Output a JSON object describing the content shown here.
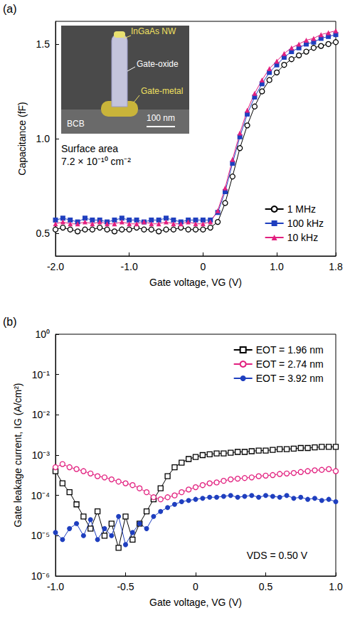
{
  "chart_data": [
    {
      "type": "line",
      "panel_label": "(a)",
      "xlabel": "Gate voltage, VG (V)",
      "ylabel": "Capacitance (fF)",
      "annotations": [
        "Surface area",
        "7.2 × 10⁻¹⁰ cm⁻²"
      ],
      "inset": {
        "labels": [
          "InGaAs NW",
          "Gate-oxide",
          "Gate-metal",
          "BCB"
        ],
        "scale_bar": "100 nm"
      },
      "xlim": [
        -2.0,
        1.8
      ],
      "xticks": [
        {
          "value": -2.0,
          "label": "-2.0"
        },
        {
          "value": -1.0,
          "label": "-1.0"
        },
        0,
        {
          "value": 1.0,
          "label": "1.0"
        },
        1.8
      ],
      "ylim": [
        0.38,
        1.62
      ],
      "yticks": [
        0.5,
        {
          "value": 1.0,
          "label": "1.0"
        },
        1.5
      ],
      "grid": false,
      "legend": "lower right",
      "x": [
        -2.0,
        -1.9,
        -1.8,
        -1.7,
        -1.6,
        -1.5,
        -1.4,
        -1.3,
        -1.2,
        -1.1,
        -1.0,
        -0.9,
        -0.8,
        -0.7,
        -0.6,
        -0.5,
        -0.4,
        -0.3,
        -0.2,
        -0.1,
        0.0,
        0.1,
        0.2,
        0.3,
        0.4,
        0.5,
        0.6,
        0.7,
        0.8,
        0.9,
        1.0,
        1.1,
        1.2,
        1.3,
        1.4,
        1.5,
        1.6,
        1.7,
        1.8
      ],
      "series": [
        {
          "name": "1 MHz",
          "color": "#000000",
          "marker": "open_circle",
          "line_style": "solid",
          "values": [
            0.52,
            0.53,
            0.52,
            0.51,
            0.52,
            0.52,
            0.53,
            0.52,
            0.51,
            0.52,
            0.52,
            0.53,
            0.52,
            0.52,
            0.51,
            0.52,
            0.52,
            0.53,
            0.52,
            0.52,
            0.52,
            0.53,
            0.56,
            0.66,
            0.8,
            0.95,
            1.07,
            1.17,
            1.25,
            1.31,
            1.35,
            1.39,
            1.42,
            1.44,
            1.46,
            1.48,
            1.49,
            1.5,
            1.51
          ]
        },
        {
          "name": "100 kHz",
          "color": "#1f3fbf",
          "marker": "filled_square",
          "line_style": "solid",
          "values": [
            0.57,
            0.58,
            0.57,
            0.56,
            0.58,
            0.57,
            0.57,
            0.56,
            0.57,
            0.58,
            0.57,
            0.57,
            0.56,
            0.57,
            0.57,
            0.58,
            0.57,
            0.56,
            0.57,
            0.57,
            0.57,
            0.57,
            0.61,
            0.72,
            0.87,
            1.01,
            1.13,
            1.22,
            1.29,
            1.35,
            1.39,
            1.43,
            1.46,
            1.48,
            1.5,
            1.51,
            1.53,
            1.54,
            1.55
          ]
        },
        {
          "name": "10 kHz",
          "color": "#e2207f",
          "marker": "filled_triangle",
          "line_style": "solid",
          "values": [
            0.55,
            0.56,
            0.55,
            0.55,
            0.56,
            0.55,
            0.56,
            0.55,
            0.55,
            0.56,
            0.55,
            0.55,
            0.56,
            0.55,
            0.55,
            0.56,
            0.55,
            0.55,
            0.56,
            0.55,
            0.55,
            0.56,
            0.62,
            0.74,
            0.89,
            1.03,
            1.15,
            1.24,
            1.31,
            1.37,
            1.41,
            1.45,
            1.48,
            1.5,
            1.52,
            1.53,
            1.55,
            1.56,
            1.57
          ]
        }
      ]
    },
    {
      "type": "line",
      "panel_label": "(b)",
      "xlabel": "Gate voltage, VG (V)",
      "ylabel": "Gate leakage current, IG (A/cm²)",
      "annotations": [
        "VDS = 0.50 V"
      ],
      "log": "y",
      "xlim": [
        -1.0,
        1.0
      ],
      "xticks": [
        {
          "value": -1.0,
          "label": "-1.0"
        },
        -0.5,
        0,
        0.5,
        {
          "value": 1.0,
          "label": "1.0"
        }
      ],
      "ylim": [
        1e-06,
        1
      ],
      "yticks": [
        {
          "value": 1e-06,
          "label": "10⁻⁶"
        },
        {
          "value": 1e-05,
          "label": "10⁻⁵"
        },
        {
          "value": 0.0001,
          "label": "10⁻⁴"
        },
        {
          "value": 0.001,
          "label": "10⁻³"
        },
        {
          "value": 0.01,
          "label": "10⁻²"
        },
        {
          "value": 0.1,
          "label": "10⁻¹"
        },
        {
          "value": 1,
          "label": "10⁰"
        }
      ],
      "grid": false,
      "legend": "upper right",
      "x": [
        -1.0,
        -0.95,
        -0.9,
        -0.85,
        -0.8,
        -0.75,
        -0.7,
        -0.65,
        -0.6,
        -0.55,
        -0.5,
        -0.45,
        -0.4,
        -0.35,
        -0.3,
        -0.25,
        -0.2,
        -0.15,
        -0.1,
        -0.05,
        0.0,
        0.05,
        0.1,
        0.15,
        0.2,
        0.25,
        0.3,
        0.35,
        0.4,
        0.45,
        0.5,
        0.55,
        0.6,
        0.65,
        0.7,
        0.75,
        0.8,
        0.85,
        0.9,
        0.95,
        1.0
      ],
      "series": [
        {
          "name": "EOT = 1.96 nm",
          "color": "#000000",
          "marker": "open_square",
          "line_style": "solid",
          "values": [
            0.0004,
            0.0002,
            0.00012,
            6e-05,
            3e-05,
            1.5e-05,
            4e-05,
            1e-05,
            2e-05,
            5e-06,
            3e-05,
            8e-06,
            2e-05,
            4e-05,
            8e-05,
            0.00015,
            0.0003,
            0.0005,
            0.00065,
            0.0008,
            0.0009,
            0.001,
            0.00105,
            0.0011,
            0.0011,
            0.00115,
            0.0012,
            0.0012,
            0.00125,
            0.0013,
            0.0013,
            0.00135,
            0.0014,
            0.0014,
            0.00145,
            0.0015,
            0.0015,
            0.00155,
            0.0016,
            0.0016,
            0.0016
          ]
        },
        {
          "name": "EOT = 2.74 nm",
          "color": "#e2207f",
          "marker": "open_circle",
          "line_style": "solid",
          "values": [
            0.0005,
            0.0006,
            0.0005,
            0.00045,
            0.0004,
            0.00035,
            0.0003,
            0.00028,
            0.00025,
            0.00022,
            0.0002,
            0.00018,
            0.00015,
            0.00012,
            9e-05,
            8e-05,
            9e-05,
            0.0001,
            0.00012,
            0.00014,
            0.00016,
            0.00018,
            0.0002,
            0.00021,
            0.00023,
            0.00025,
            0.00026,
            0.00027,
            0.00028,
            0.0003,
            0.00031,
            0.00032,
            0.00034,
            0.00035,
            0.00036,
            0.00038,
            0.0004,
            0.00042,
            0.00043,
            0.00045,
            0.0004
          ]
        },
        {
          "name": "EOT = 3.92 nm",
          "color": "#1f3fbf",
          "marker": "filled_circle",
          "line_style": "solid",
          "values": [
            1.2e-05,
            8e-06,
            1.5e-05,
            2e-05,
            1e-05,
            2.5e-05,
            8e-06,
            1.5e-05,
            1e-05,
            3e-05,
            6e-06,
            1.2e-05,
            2e-05,
            1.5e-05,
            3e-05,
            4e-05,
            5e-05,
            6e-05,
            7e-05,
            7.5e-05,
            8e-05,
            8.5e-05,
            9e-05,
            9e-05,
            9.5e-05,
            0.0001,
            9e-05,
            9.5e-05,
            0.0001,
            9e-05,
            0.0001,
            9.5e-05,
            9e-05,
            0.0001,
            8.5e-05,
            9e-05,
            8e-05,
            8.5e-05,
            7.5e-05,
            8e-05,
            7e-05
          ]
        }
      ]
    }
  ]
}
